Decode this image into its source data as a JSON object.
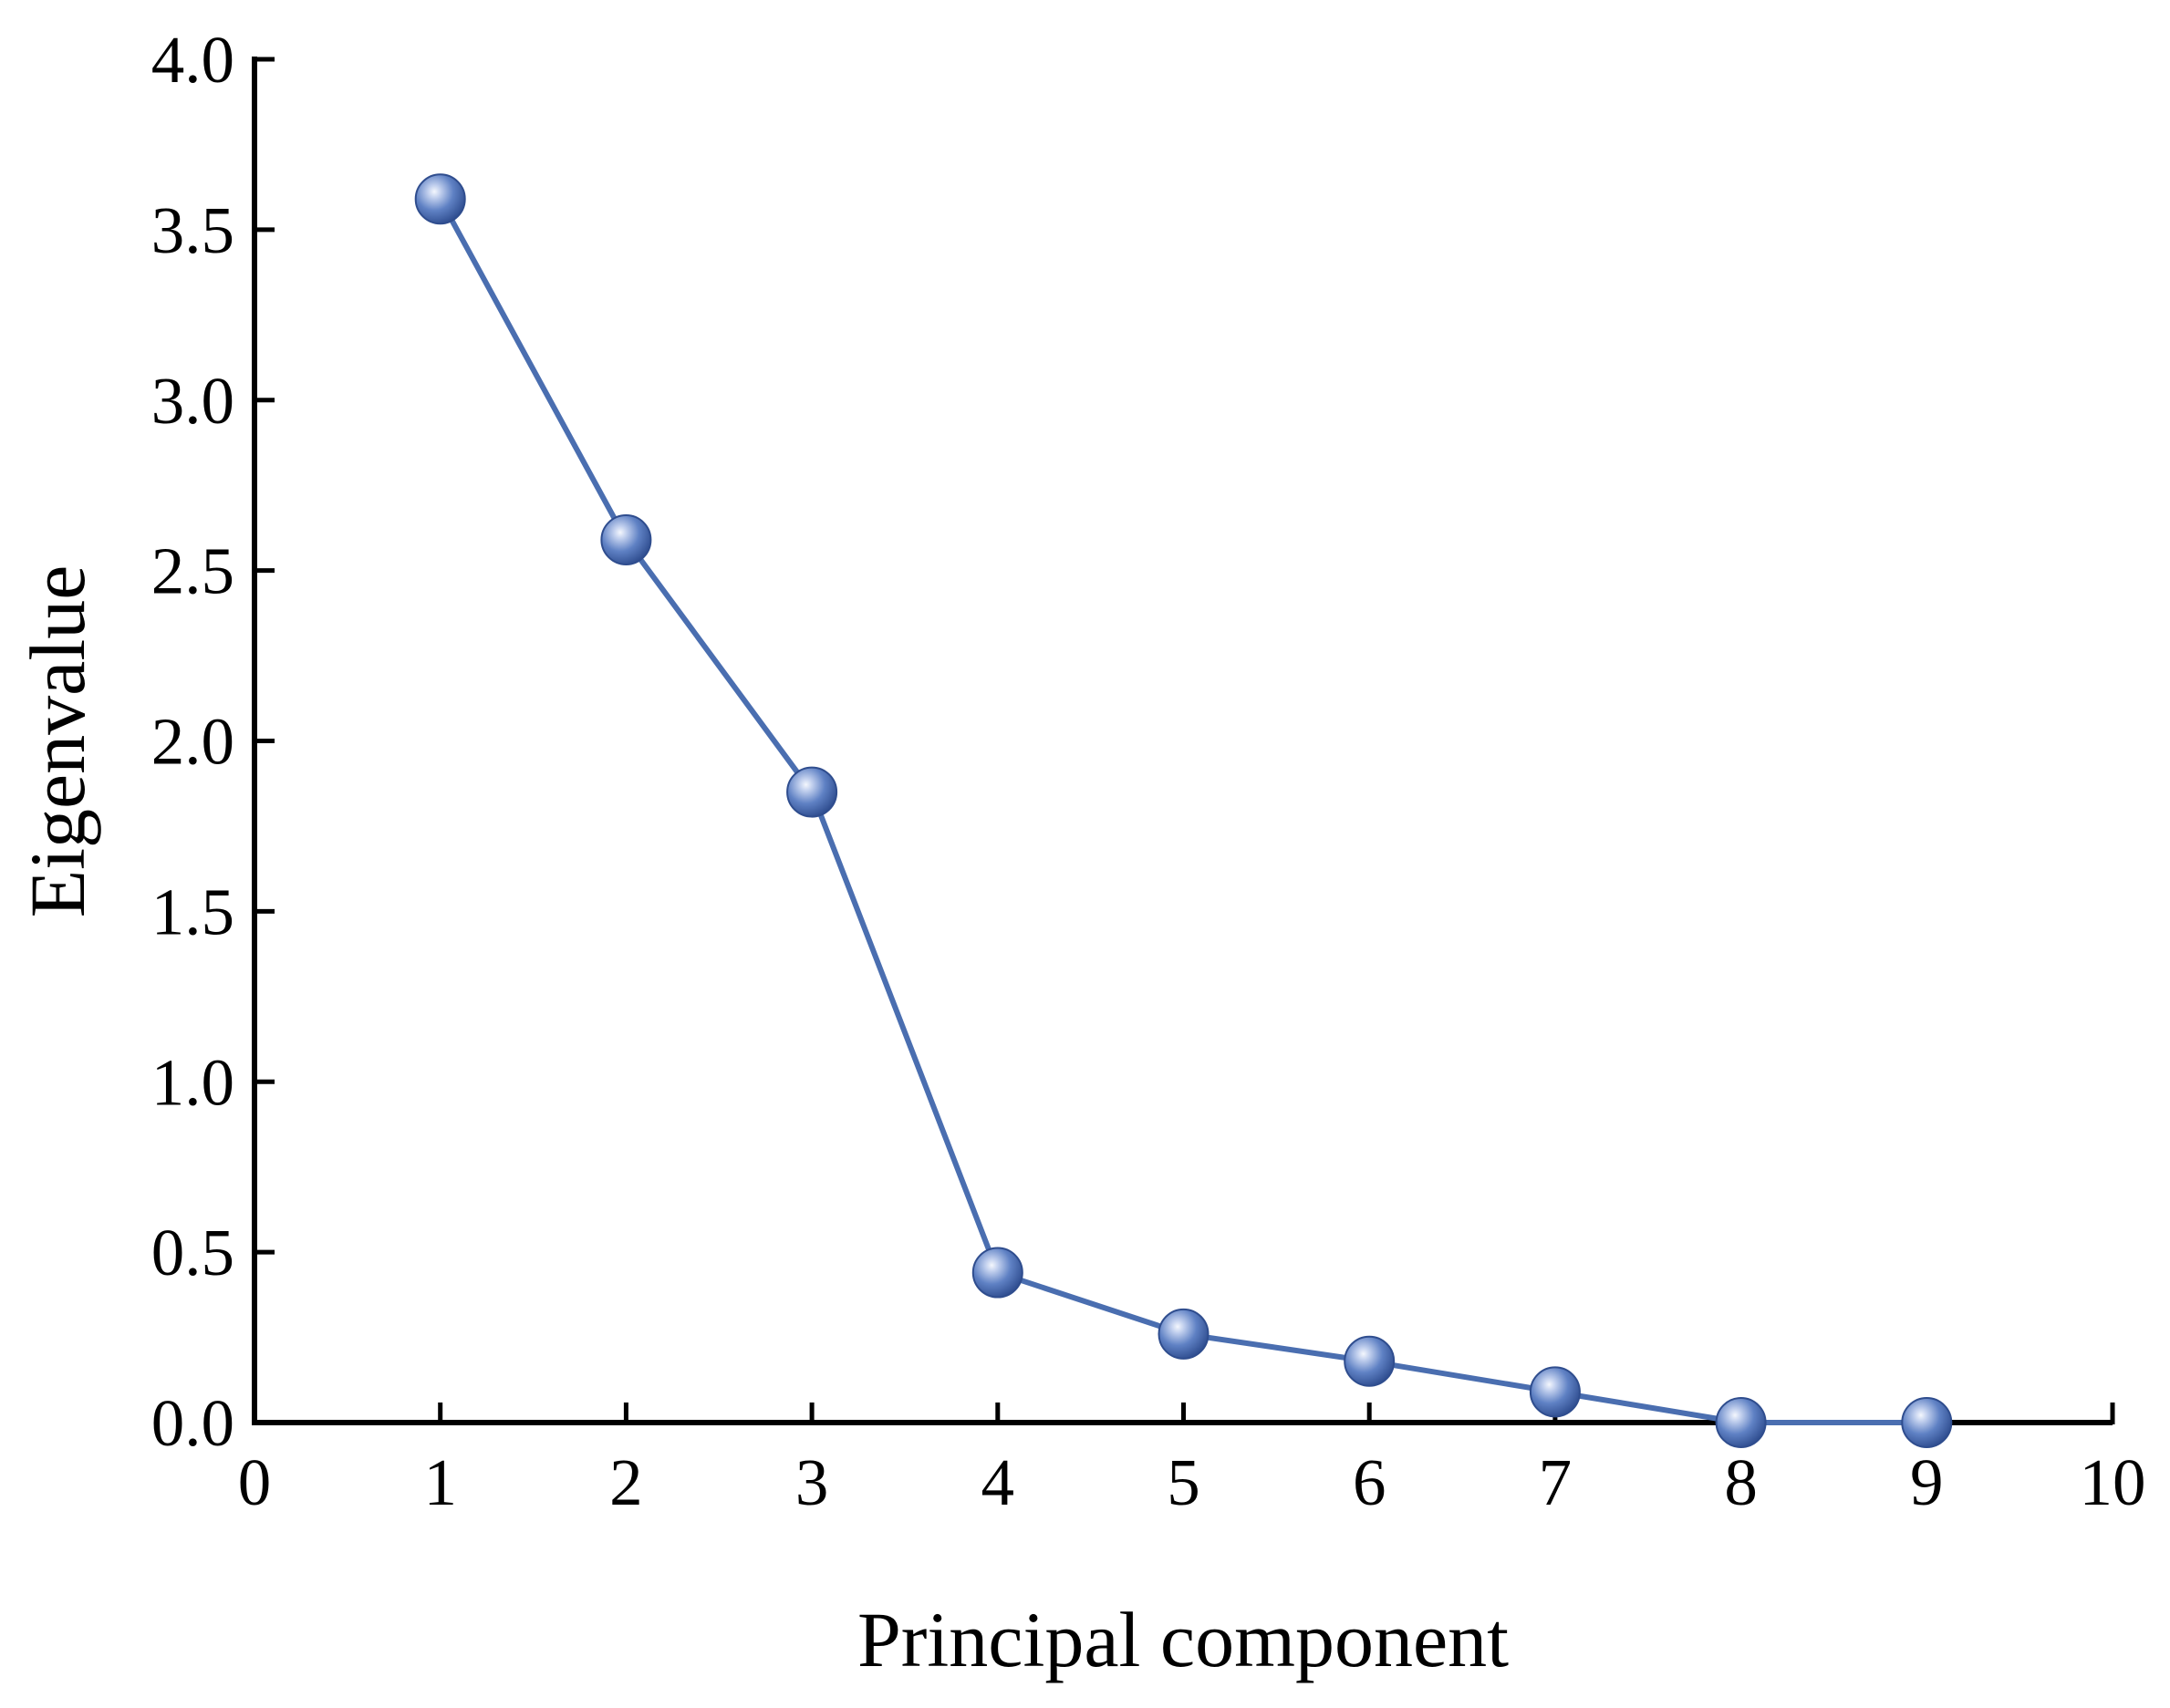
{
  "chart_data": {
    "type": "line",
    "xlabel": "Principal component",
    "ylabel": "Eigenvalue",
    "xlim": [
      0,
      10
    ],
    "ylim": [
      0,
      4.0
    ],
    "x_ticks": [
      "0",
      "1",
      "2",
      "3",
      "4",
      "5",
      "6",
      "7",
      "8",
      "9",
      "10"
    ],
    "y_ticks": [
      "0.0",
      "0.5",
      "1.0",
      "1.5",
      "2.0",
      "2.5",
      "3.0",
      "3.5",
      "4.0"
    ],
    "grid": false,
    "series": [
      {
        "x": [
          1,
          2,
          3,
          4,
          5,
          6,
          7,
          8,
          9
        ],
        "y": [
          3.59,
          2.59,
          1.85,
          0.44,
          0.26,
          0.18,
          0.09,
          0.0,
          0.0
        ],
        "color": "#4a6eb0",
        "marker": "sphere"
      }
    ]
  }
}
